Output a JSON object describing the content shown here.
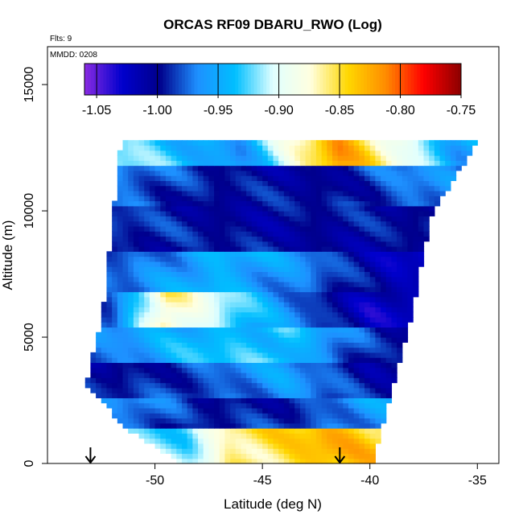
{
  "chart_data": {
    "type": "heatmap",
    "title": "ORCAS RF09 DBARU_RWO (Log)",
    "annotations": [
      "Flts: 9",
      "MMDD: 0208"
    ],
    "xlabel": "Latitude (deg N)",
    "ylabel": "Altitude (m)",
    "xlim": [
      -55,
      -34
    ],
    "ylim": [
      0,
      16500
    ],
    "x_ticks": [
      -50,
      -45,
      -40,
      -35
    ],
    "x_tick_labels": [
      "-50",
      "-45",
      "-40",
      "-35"
    ],
    "y_ticks": [
      0,
      5000,
      10000,
      15000
    ],
    "y_tick_labels": [
      "0",
      "5000",
      "10000",
      "15000"
    ],
    "colorbar": {
      "min": -1.06,
      "max": -0.75,
      "ticks": [
        -1.05,
        -1.0,
        -0.95,
        -0.9,
        -0.85,
        -0.8,
        -0.75
      ],
      "tick_labels": [
        "-1.05",
        "-1.00",
        "-0.95",
        "-0.90",
        "-0.85",
        "-0.80",
        "-0.75"
      ],
      "colors": [
        "#8a2be2",
        "#0000cd",
        "#00008b",
        "#1e90ff",
        "#00bfff",
        "#e0ffff",
        "#ffffe0",
        "#ffd700",
        "#ff8c00",
        "#ff0000",
        "#8b0000"
      ]
    },
    "domain": {
      "bottom_alt": 0,
      "top_alt": 12700,
      "left_edge_lat": [
        [
          -53.1,
          3100
        ],
        [
          -52.3,
          6000
        ],
        [
          -51.5,
          12400
        ],
        [
          -48.6,
          0
        ]
      ],
      "right_edge_lat": [
        [
          -40.0,
          0
        ],
        [
          -38.2,
          5700
        ],
        [
          -37.3,
          9800
        ],
        [
          -35.1,
          12700
        ]
      ]
    },
    "arrows": [
      {
        "lat": -53.0,
        "alt": 0
      },
      {
        "lat": -41.4,
        "alt": 0
      }
    ],
    "layers": [
      {
        "alt_range": [
          0,
          1400
        ],
        "value_lat": [
          [
            -48.5,
            -0.92
          ],
          [
            -46.5,
            -0.86
          ],
          [
            -44.0,
            -0.85
          ],
          [
            -42.0,
            -0.83
          ],
          [
            -40.0,
            -0.84
          ]
        ]
      },
      {
        "alt_range": [
          1400,
          2600
        ],
        "value_lat": [
          [
            -50.5,
            -0.97
          ],
          [
            -48.0,
            -1.0
          ],
          [
            -44.0,
            -0.99
          ],
          [
            -40.5,
            -0.96
          ]
        ]
      },
      {
        "alt_range": [
          2600,
          4000
        ],
        "value_lat": [
          [
            -52.5,
            -1.0
          ],
          [
            -48.0,
            -0.98
          ],
          [
            -44.0,
            -0.96
          ],
          [
            -40.0,
            -1.0
          ]
        ]
      },
      {
        "alt_range": [
          4000,
          5400
        ],
        "value_lat": [
          [
            -52.0,
            -0.97
          ],
          [
            -48.0,
            -0.94
          ],
          [
            -44.0,
            -0.93
          ],
          [
            -39.5,
            -1.0
          ]
        ]
      },
      {
        "alt_range": [
          5400,
          6800
        ],
        "value_lat": [
          [
            -52.0,
            -0.98
          ],
          [
            -49.5,
            -0.86
          ],
          [
            -45.0,
            -0.95
          ],
          [
            -40.0,
            -1.02
          ]
        ]
      },
      {
        "alt_range": [
          6800,
          8400
        ],
        "value_lat": [
          [
            -51.5,
            -0.98
          ],
          [
            -47.0,
            -0.94
          ],
          [
            -43.0,
            -0.97
          ],
          [
            -39.0,
            -1.02
          ]
        ]
      },
      {
        "alt_range": [
          8400,
          10200
        ],
        "value_lat": [
          [
            -51.5,
            -0.99
          ],
          [
            -47.0,
            -1.0
          ],
          [
            -42.0,
            -1.0
          ],
          [
            -38.5,
            -1.0
          ]
        ]
      },
      {
        "alt_range": [
          10200,
          11800
        ],
        "value_lat": [
          [
            -51.5,
            -0.97
          ],
          [
            -47.0,
            -1.0
          ],
          [
            -42.0,
            -1.0
          ],
          [
            -38.0,
            -0.97
          ]
        ]
      },
      {
        "alt_range": [
          11800,
          12700
        ],
        "value_lat": [
          [
            -51.0,
            -0.92
          ],
          [
            -46.0,
            -0.96
          ],
          [
            -41.5,
            -0.82
          ],
          [
            -38.0,
            -0.9
          ],
          [
            -36.0,
            -0.95
          ]
        ]
      }
    ],
    "grid": false,
    "legend": "colorbar top inside plot"
  }
}
